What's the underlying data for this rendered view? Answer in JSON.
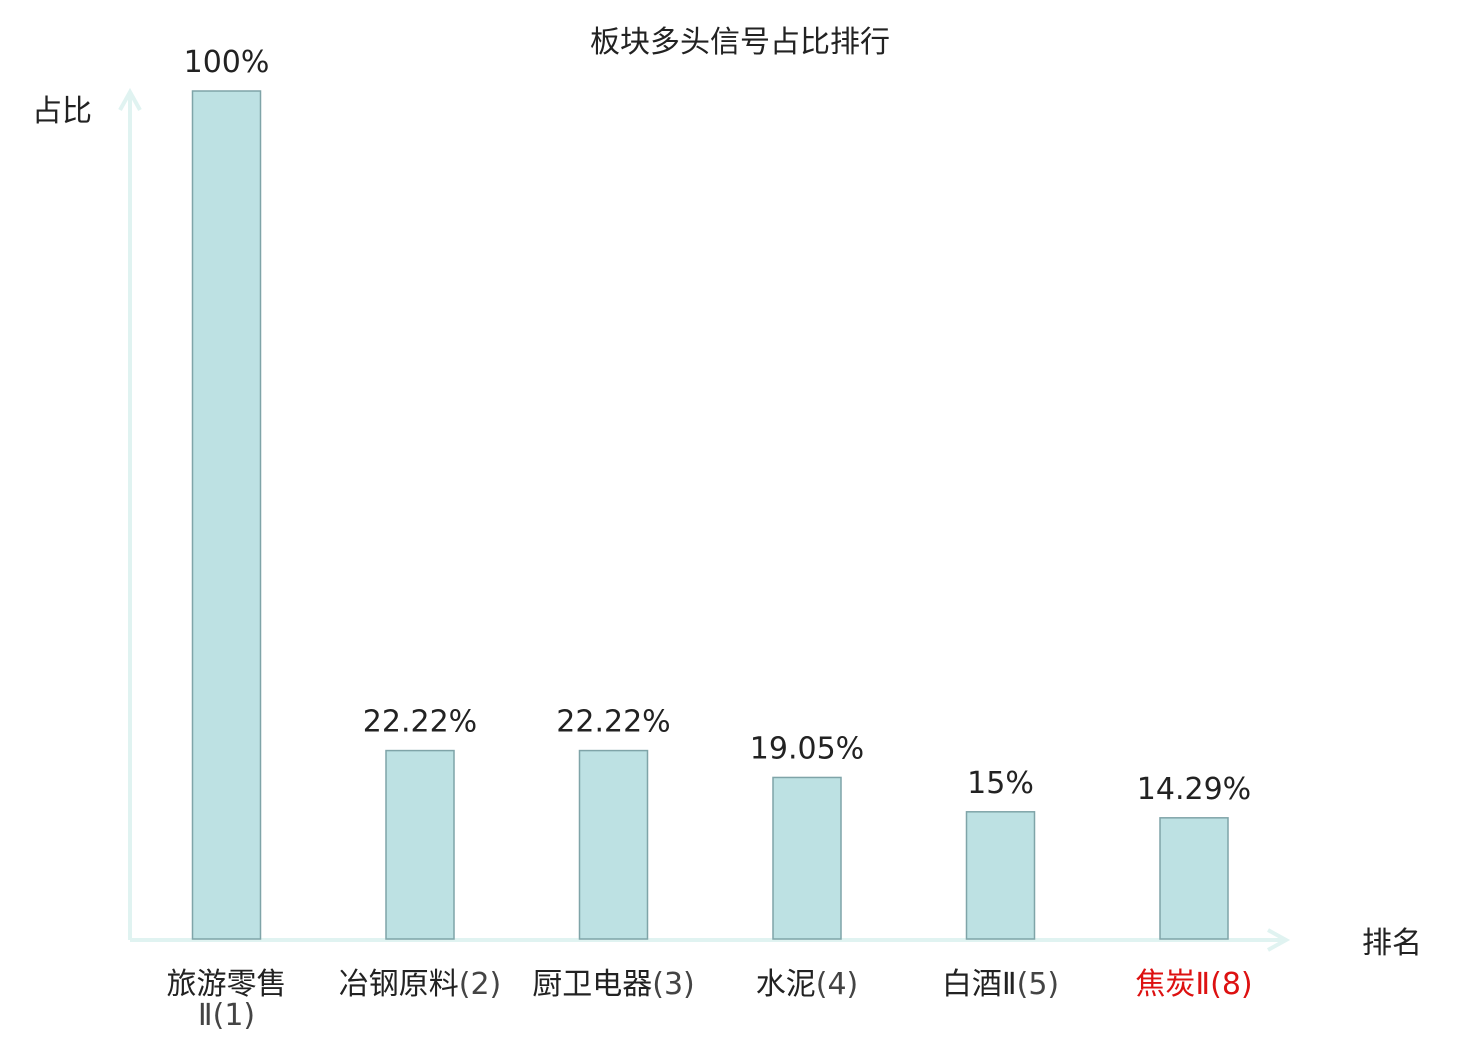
{
  "chart_data": {
    "type": "bar",
    "title": "板块多头信号占比排行",
    "ylabel": "占比",
    "xlabel": "排名",
    "ylim": [
      0,
      100
    ],
    "grid": false,
    "legend": "none",
    "categories": [
      {
        "name": "旅游零售Ⅱ",
        "rank": "(1)",
        "highlight": false
      },
      {
        "name": "冶钢原料",
        "rank": "(2)",
        "highlight": false
      },
      {
        "name": "厨卫电器",
        "rank": "(3)",
        "highlight": false
      },
      {
        "name": "水泥",
        "rank": "(4)",
        "highlight": false
      },
      {
        "name": "白酒Ⅱ",
        "rank": "(5)",
        "highlight": false
      },
      {
        "name": "焦炭Ⅱ",
        "rank": "(8)",
        "highlight": true
      }
    ],
    "values": [
      100,
      22.22,
      22.22,
      19.05,
      15,
      14.29
    ],
    "value_labels": [
      "100%",
      "22.22%",
      "22.22%",
      "19.05%",
      "15%",
      "14.29%"
    ]
  },
  "colors": {
    "bar_fill": "#bde1e3",
    "bar_stroke": "#7fa4a8",
    "axis": "#e0f3f1",
    "text": "#222222",
    "rank_text": "#444444",
    "highlight": "#dd1111"
  }
}
